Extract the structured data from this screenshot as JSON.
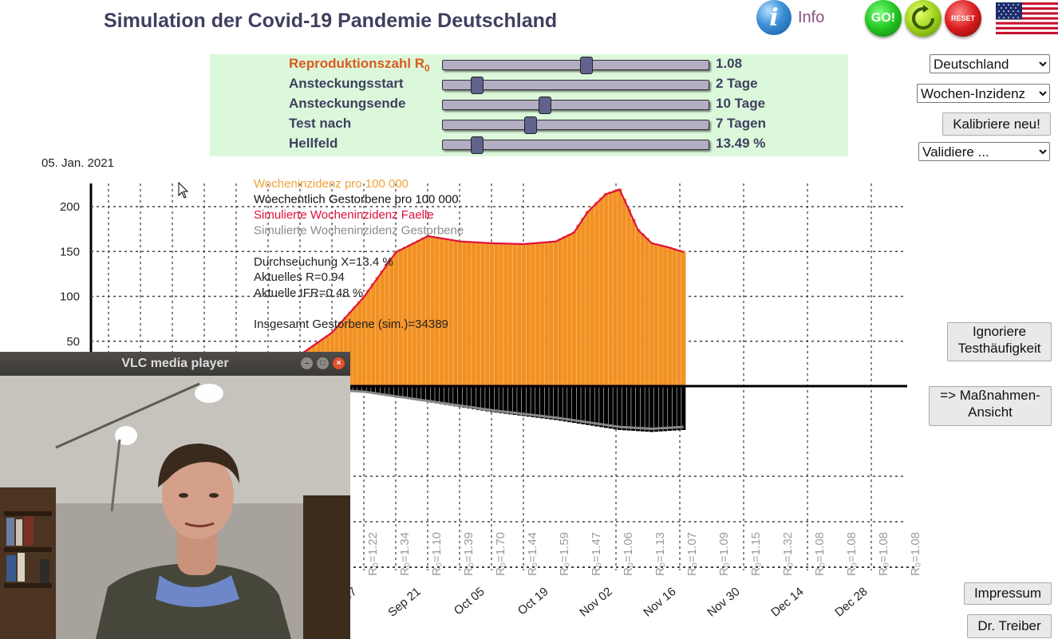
{
  "header": {
    "title": "Simulation der Covid-19 Pandemie Deutschland",
    "info_label": "Info",
    "info_icon": "info-icon",
    "go_label": "GO!",
    "reset_label": "RESET",
    "flag_icon": "us-flag-icon"
  },
  "sliders": [
    {
      "label": "Reproduktionszahl R",
      "sub": "0",
      "value": "1.08",
      "fraction": 0.54
    },
    {
      "label": "Ansteckungsstart",
      "value": "2 Tage",
      "fraction": 0.13
    },
    {
      "label": "Ansteckungsende",
      "value": "10 Tage",
      "fraction": 0.385
    },
    {
      "label": "Test nach",
      "value": "7 Tagen",
      "fraction": 0.33
    },
    {
      "label": "Hellfeld",
      "value": "13.49 %",
      "fraction": 0.13
    }
  ],
  "side_controls": {
    "country_select": "Deutschland",
    "metric_select": "Wochen-Inzidenz",
    "calibrate_button": "Kalibriere neu!",
    "validate_select": "Validiere ...",
    "ignore_button_line1": "Ignoriere",
    "ignore_button_line2": "Testhäufigkeit",
    "measures_button_line1": "=> Maßnahmen-",
    "measures_button_line2": "Ansicht",
    "impressum_button": "Impressum",
    "author_button": "Dr. Treiber"
  },
  "chart_date": "05. Jan. 2021",
  "chart_data": {
    "type": "bar",
    "y_ticks": [
      50,
      100,
      150,
      200
    ],
    "ylim": [
      -60,
      220
    ],
    "x_tick_labels": [
      "Sep 07",
      "Sep 21",
      "Oct 05",
      "Oct 19",
      "Nov 02",
      "Nov 16",
      "Nov 30",
      "Dec 14",
      "Dec 28"
    ],
    "legend": [
      {
        "label": "Wocheninzidenz pro 100 000",
        "color": "#f0a23a"
      },
      {
        "label": "Woechentlich Gestorbene pro 100 000",
        "color": "#111111"
      },
      {
        "label": "Simulierte Wocheninzidenz Faelle",
        "color": "#e01040"
      },
      {
        "label": "Simulierte Wocheninzidenz Gestorbene",
        "color": "#8a8a8a"
      }
    ],
    "stats": [
      "Durchseuchung X=13.4 %",
      "Aktuelles R=0.94",
      "Aktuelle IFR=0.48 %",
      "Insgesamt Gestorbene (sim.)=34389"
    ],
    "r0_labels": [
      "1.22",
      "1.34",
      "1.10",
      "1.39",
      "1.70",
      "1.44",
      "1.59",
      "1.47",
      "1.06",
      "1.13",
      "1.07",
      "1.09",
      "1.15",
      "1.32",
      "1.08",
      "1.08",
      "1.08",
      "1.08"
    ],
    "series": [
      {
        "name": "Wocheninzidenz pro 100 000",
        "keypoints_date_offset_days": [
          0,
          14,
          28,
          35,
          42,
          49,
          56,
          63,
          70,
          77,
          84,
          91,
          98,
          102,
          105,
          109,
          112,
          116,
          119,
          123,
          126
        ],
        "keypoints_values": [
          10,
          12,
          15,
          22,
          35,
          60,
          100,
          150,
          168,
          162,
          160,
          159,
          162,
          172,
          195,
          215,
          220,
          175,
          160,
          155,
          150
        ]
      },
      {
        "name": "Woechentlich Gestorbene pro 100 000",
        "keypoints_date_offset_days": [
          0,
          28,
          42,
          56,
          70,
          84,
          98,
          112,
          119,
          126
        ],
        "keypoints_values": [
          0.2,
          0.5,
          1,
          3,
          8,
          13,
          17,
          22,
          23,
          22
        ]
      }
    ],
    "death_axis_scale": 2.5,
    "series_colors": {
      "bars": "#f29022",
      "bar_highlight": "#f4a84a",
      "sim_cases": "#e01040",
      "deaths": "#000000",
      "sim_deaths": "#8a8a8a"
    }
  },
  "vlc_window": {
    "title": "VLC media player",
    "min_icon": "minimize-icon",
    "max_icon": "maximize-icon",
    "close_icon": "close-icon"
  }
}
